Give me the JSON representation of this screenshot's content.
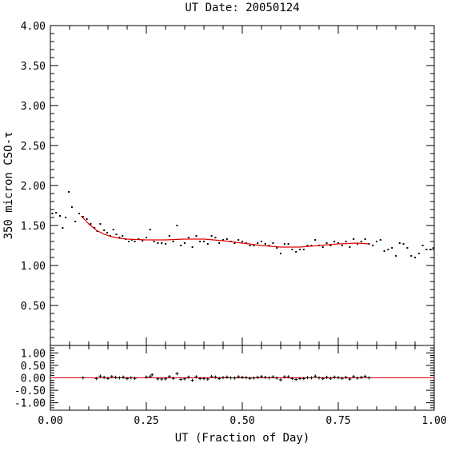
{
  "chart_data": {
    "type": "scatter",
    "title": "UT Date: 20050124",
    "xlabel": "UT (Fraction of Day)",
    "ylabel": "350 micron CSO-τ",
    "xlim": [
      0,
      1
    ],
    "x_ticks": [
      "0.00",
      "0.25",
      "0.50",
      "0.75",
      "1.00"
    ],
    "main_panel": {
      "ylim": [
        0,
        4
      ],
      "y_ticks": [
        "0.50",
        "1.00",
        "1.50",
        "2.00",
        "2.50",
        "3.00",
        "3.50",
        "4.00"
      ],
      "grid": false,
      "points_color": "#000000",
      "points": [
        [
          0.005,
          1.65
        ],
        [
          0.015,
          1.66
        ],
        [
          0.025,
          1.62
        ],
        [
          0.032,
          1.47
        ],
        [
          0.04,
          1.6
        ],
        [
          0.048,
          1.92
        ],
        [
          0.056,
          1.73
        ],
        [
          0.065,
          1.55
        ],
        [
          0.075,
          1.65
        ],
        [
          0.085,
          1.61
        ],
        [
          0.095,
          1.58
        ],
        [
          0.105,
          1.52
        ],
        [
          0.115,
          1.47
        ],
        [
          0.122,
          1.43
        ],
        [
          0.13,
          1.52
        ],
        [
          0.14,
          1.44
        ],
        [
          0.148,
          1.41
        ],
        [
          0.156,
          1.37
        ],
        [
          0.164,
          1.45
        ],
        [
          0.172,
          1.39
        ],
        [
          0.18,
          1.35
        ],
        [
          0.188,
          1.37
        ],
        [
          0.196,
          1.33
        ],
        [
          0.204,
          1.3
        ],
        [
          0.212,
          1.32
        ],
        [
          0.22,
          1.3
        ],
        [
          0.23,
          1.33
        ],
        [
          0.24,
          1.31
        ],
        [
          0.25,
          1.35
        ],
        [
          0.26,
          1.45
        ],
        [
          0.27,
          1.3
        ],
        [
          0.28,
          1.28
        ],
        [
          0.29,
          1.28
        ],
        [
          0.3,
          1.27
        ],
        [
          0.31,
          1.37
        ],
        [
          0.32,
          1.3
        ],
        [
          0.33,
          1.5
        ],
        [
          0.34,
          1.25
        ],
        [
          0.35,
          1.28
        ],
        [
          0.36,
          1.35
        ],
        [
          0.37,
          1.23
        ],
        [
          0.38,
          1.37
        ],
        [
          0.39,
          1.3
        ],
        [
          0.4,
          1.3
        ],
        [
          0.41,
          1.27
        ],
        [
          0.42,
          1.37
        ],
        [
          0.43,
          1.35
        ],
        [
          0.44,
          1.28
        ],
        [
          0.45,
          1.32
        ],
        [
          0.46,
          1.33
        ],
        [
          0.47,
          1.3
        ],
        [
          0.48,
          1.28
        ],
        [
          0.49,
          1.32
        ],
        [
          0.5,
          1.3
        ],
        [
          0.51,
          1.28
        ],
        [
          0.52,
          1.25
        ],
        [
          0.53,
          1.25
        ],
        [
          0.54,
          1.28
        ],
        [
          0.55,
          1.3
        ],
        [
          0.56,
          1.27
        ],
        [
          0.57,
          1.25
        ],
        [
          0.58,
          1.28
        ],
        [
          0.59,
          1.22
        ],
        [
          0.6,
          1.15
        ],
        [
          0.61,
          1.27
        ],
        [
          0.62,
          1.27
        ],
        [
          0.63,
          1.2
        ],
        [
          0.64,
          1.17
        ],
        [
          0.65,
          1.2
        ],
        [
          0.66,
          1.2
        ],
        [
          0.67,
          1.25
        ],
        [
          0.68,
          1.25
        ],
        [
          0.69,
          1.32
        ],
        [
          0.7,
          1.25
        ],
        [
          0.71,
          1.23
        ],
        [
          0.72,
          1.28
        ],
        [
          0.73,
          1.25
        ],
        [
          0.74,
          1.3
        ],
        [
          0.75,
          1.28
        ],
        [
          0.76,
          1.25
        ],
        [
          0.77,
          1.3
        ],
        [
          0.78,
          1.23
        ],
        [
          0.79,
          1.33
        ],
        [
          0.8,
          1.27
        ],
        [
          0.81,
          1.3
        ],
        [
          0.82,
          1.33
        ],
        [
          0.83,
          1.27
        ],
        [
          0.84,
          1.25
        ],
        [
          0.85,
          1.3
        ],
        [
          0.86,
          1.32
        ],
        [
          0.87,
          1.18
        ],
        [
          0.88,
          1.2
        ],
        [
          0.89,
          1.22
        ],
        [
          0.9,
          1.12
        ],
        [
          0.91,
          1.28
        ],
        [
          0.92,
          1.27
        ],
        [
          0.93,
          1.22
        ],
        [
          0.94,
          1.12
        ],
        [
          0.95,
          1.1
        ],
        [
          0.96,
          1.15
        ],
        [
          0.97,
          1.25
        ],
        [
          0.98,
          1.2
        ],
        [
          0.99,
          1.2
        ],
        [
          0.998,
          1.22
        ]
      ],
      "fit_color": "#e00000",
      "fit": [
        [
          0.08,
          1.62
        ],
        [
          0.1,
          1.52
        ],
        [
          0.12,
          1.44
        ],
        [
          0.14,
          1.39
        ],
        [
          0.16,
          1.36
        ],
        [
          0.18,
          1.34
        ],
        [
          0.2,
          1.33
        ],
        [
          0.25,
          1.32
        ],
        [
          0.3,
          1.32
        ],
        [
          0.35,
          1.33
        ],
        [
          0.4,
          1.33
        ],
        [
          0.45,
          1.31
        ],
        [
          0.5,
          1.28
        ],
        [
          0.55,
          1.25
        ],
        [
          0.6,
          1.23
        ],
        [
          0.65,
          1.23
        ],
        [
          0.7,
          1.25
        ],
        [
          0.75,
          1.27
        ],
        [
          0.8,
          1.28
        ],
        [
          0.83,
          1.27
        ]
      ]
    },
    "residual_panel": {
      "ylim": [
        -1.3,
        1.3
      ],
      "y_ticks": [
        "-1.00",
        "-0.50",
        "0.00",
        "0.50",
        "1.00"
      ],
      "zero_line_color": "#e00000",
      "residuals": [
        [
          0.085,
          0.0
        ],
        [
          0.12,
          -0.03
        ],
        [
          0.13,
          0.07
        ],
        [
          0.14,
          0.02
        ],
        [
          0.15,
          -0.02
        ],
        [
          0.16,
          0.05
        ],
        [
          0.17,
          0.02
        ],
        [
          0.18,
          0.0
        ],
        [
          0.19,
          0.03
        ],
        [
          0.2,
          -0.03
        ],
        [
          0.21,
          0.0
        ],
        [
          0.22,
          -0.02
        ],
        [
          0.25,
          0.03
        ],
        [
          0.26,
          0.05
        ],
        [
          0.265,
          0.12
        ],
        [
          0.28,
          -0.04
        ],
        [
          0.29,
          -0.05
        ],
        [
          0.3,
          -0.04
        ],
        [
          0.31,
          0.05
        ],
        [
          0.32,
          -0.02
        ],
        [
          0.33,
          0.17
        ],
        [
          0.34,
          -0.06
        ],
        [
          0.35,
          -0.04
        ],
        [
          0.36,
          0.03
        ],
        [
          0.37,
          -0.1
        ],
        [
          0.38,
          0.04
        ],
        [
          0.39,
          -0.03
        ],
        [
          0.4,
          -0.03
        ],
        [
          0.41,
          -0.05
        ],
        [
          0.42,
          0.05
        ],
        [
          0.43,
          0.03
        ],
        [
          0.44,
          -0.03
        ],
        [
          0.45,
          0.01
        ],
        [
          0.46,
          0.03
        ],
        [
          0.47,
          0.0
        ],
        [
          0.48,
          -0.01
        ],
        [
          0.49,
          0.04
        ],
        [
          0.5,
          0.02
        ],
        [
          0.51,
          0.01
        ],
        [
          0.52,
          -0.02
        ],
        [
          0.53,
          -0.01
        ],
        [
          0.54,
          0.02
        ],
        [
          0.55,
          0.05
        ],
        [
          0.56,
          0.02
        ],
        [
          0.57,
          0.0
        ],
        [
          0.58,
          0.04
        ],
        [
          0.59,
          -0.01
        ],
        [
          0.6,
          -0.08
        ],
        [
          0.61,
          0.04
        ],
        [
          0.62,
          0.04
        ],
        [
          0.63,
          -0.03
        ],
        [
          0.64,
          -0.06
        ],
        [
          0.65,
          -0.03
        ],
        [
          0.66,
          -0.03
        ],
        [
          0.67,
          0.01
        ],
        [
          0.68,
          0.0
        ],
        [
          0.69,
          0.07
        ],
        [
          0.7,
          0.0
        ],
        [
          0.71,
          -0.03
        ],
        [
          0.72,
          0.02
        ],
        [
          0.73,
          -0.02
        ],
        [
          0.74,
          0.03
        ],
        [
          0.75,
          0.01
        ],
        [
          0.76,
          -0.02
        ],
        [
          0.77,
          0.02
        ],
        [
          0.78,
          -0.05
        ],
        [
          0.79,
          0.05
        ],
        [
          0.8,
          -0.01
        ],
        [
          0.81,
          0.02
        ],
        [
          0.82,
          0.06
        ],
        [
          0.83,
          0.0
        ]
      ]
    }
  }
}
